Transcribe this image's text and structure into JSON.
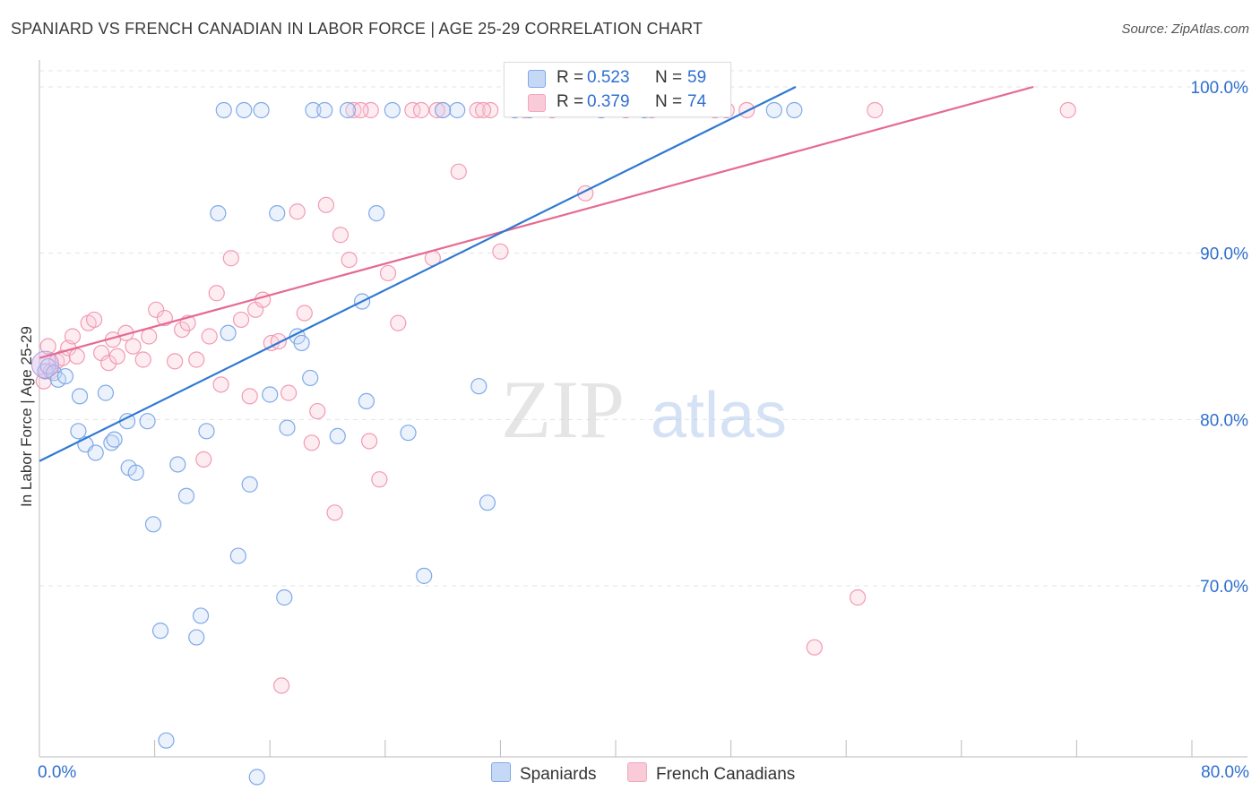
{
  "title": "SPANIARD VS FRENCH CANADIAN IN LABOR FORCE | AGE 25-29 CORRELATION CHART",
  "source": "Source: ZipAtlas.com",
  "watermark": {
    "zip": "ZIP",
    "atlas": "atlas"
  },
  "legend_box": {
    "rows": [
      {
        "r_label": "R =",
        "r_value": "0.523",
        "n_label": "N =",
        "n_value": "59"
      },
      {
        "r_label": "R =",
        "r_value": "0.379",
        "n_label": "N =",
        "n_value": "74"
      }
    ]
  },
  "bottom_legend": [
    "Spaniards",
    "French Canadians"
  ],
  "chart_data": {
    "type": "scatter",
    "title": "SPANIARD VS FRENCH CANADIAN IN LABOR FORCE | AGE 25-29 CORRELATION CHART",
    "xlabel": "",
    "ylabel": "In Labor Force | Age 25-29",
    "xlim": [
      0,
      80
    ],
    "ylim": [
      60,
      100
    ],
    "x_tick_labels": [
      "0.0%",
      "80.0%"
    ],
    "y_ticks": [
      70,
      80,
      90,
      100
    ],
    "y_tick_labels": [
      "70.0%",
      "80.0%",
      "90.0%",
      "100.0%"
    ],
    "grid": true,
    "legend_position": "top-center",
    "colors": {
      "Spaniards": "#7fa9e8",
      "French Canadians": "#f4a7bd",
      "Spaniards_line": "#2e78d3",
      "French Canadians_line": "#e56a92",
      "axis_text": "#2f6fcf"
    },
    "series": [
      {
        "name": "Spaniards",
        "R": 0.523,
        "N": 59,
        "trend": {
          "x": [
            0,
            52.5
          ],
          "y": [
            77.5,
            100
          ]
        },
        "points": [
          [
            0.4,
            82.9
          ],
          [
            0.6,
            83.2
          ],
          [
            1.0,
            82.8
          ],
          [
            1.3,
            82.4
          ],
          [
            1.8,
            82.6
          ],
          [
            2.8,
            81.4
          ],
          [
            2.7,
            79.3
          ],
          [
            3.2,
            78.5
          ],
          [
            3.9,
            78.0
          ],
          [
            4.6,
            81.6
          ],
          [
            5.0,
            78.6
          ],
          [
            5.2,
            78.8
          ],
          [
            6.1,
            79.9
          ],
          [
            6.2,
            77.1
          ],
          [
            6.7,
            76.8
          ],
          [
            7.5,
            79.9
          ],
          [
            7.9,
            73.7
          ],
          [
            8.4,
            67.3
          ],
          [
            8.8,
            60.7
          ],
          [
            9.6,
            77.3
          ],
          [
            10.2,
            75.4
          ],
          [
            10.9,
            66.9
          ],
          [
            11.2,
            68.2
          ],
          [
            11.6,
            79.3
          ],
          [
            12.4,
            92.4
          ],
          [
            12.8,
            98.6
          ],
          [
            13.1,
            85.2
          ],
          [
            14.2,
            98.6
          ],
          [
            13.8,
            71.8
          ],
          [
            14.6,
            76.1
          ],
          [
            15.1,
            58.5
          ],
          [
            15.4,
            98.6
          ],
          [
            16.0,
            81.5
          ],
          [
            16.5,
            92.4
          ],
          [
            17.0,
            69.3
          ],
          [
            17.2,
            79.5
          ],
          [
            17.9,
            85.0
          ],
          [
            18.2,
            84.6
          ],
          [
            18.8,
            82.5
          ],
          [
            19.0,
            98.6
          ],
          [
            19.8,
            98.6
          ],
          [
            20.7,
            79.0
          ],
          [
            21.4,
            98.6
          ],
          [
            22.4,
            87.1
          ],
          [
            22.7,
            81.1
          ],
          [
            23.4,
            92.4
          ],
          [
            24.5,
            98.6
          ],
          [
            25.6,
            79.2
          ],
          [
            26.7,
            70.6
          ],
          [
            29.0,
            98.6
          ],
          [
            30.5,
            82.0
          ],
          [
            31.1,
            75.0
          ],
          [
            34.0,
            98.6
          ],
          [
            39.0,
            98.6
          ],
          [
            42.0,
            98.6
          ],
          [
            51.0,
            98.6
          ],
          [
            52.4,
            98.6
          ],
          [
            28.0,
            98.6
          ],
          [
            33.0,
            98.6
          ]
        ]
      },
      {
        "name": "French Canadians",
        "R": 0.379,
        "N": 74,
        "trend": {
          "x": [
            0,
            69
          ],
          "y": [
            83.7,
            100
          ]
        },
        "points": [
          [
            0.3,
            82.3
          ],
          [
            0.8,
            82.9
          ],
          [
            1.2,
            83.5
          ],
          [
            1.6,
            83.7
          ],
          [
            2.0,
            84.3
          ],
          [
            2.6,
            83.8
          ],
          [
            3.4,
            85.8
          ],
          [
            3.8,
            86.0
          ],
          [
            4.3,
            84.0
          ],
          [
            4.8,
            83.4
          ],
          [
            5.4,
            83.8
          ],
          [
            6.0,
            85.2
          ],
          [
            6.5,
            84.4
          ],
          [
            7.2,
            83.6
          ],
          [
            7.6,
            85.0
          ],
          [
            8.1,
            86.6
          ],
          [
            8.7,
            86.1
          ],
          [
            9.4,
            83.5
          ],
          [
            9.9,
            85.4
          ],
          [
            10.3,
            85.8
          ],
          [
            10.9,
            83.6
          ],
          [
            11.4,
            77.6
          ],
          [
            11.8,
            85.0
          ],
          [
            12.3,
            87.6
          ],
          [
            12.6,
            82.1
          ],
          [
            13.3,
            89.7
          ],
          [
            14.0,
            86.0
          ],
          [
            14.6,
            81.4
          ],
          [
            15.0,
            86.6
          ],
          [
            15.5,
            87.2
          ],
          [
            16.1,
            84.6
          ],
          [
            16.6,
            84.7
          ],
          [
            16.8,
            64.0
          ],
          [
            17.3,
            81.6
          ],
          [
            17.9,
            92.5
          ],
          [
            18.4,
            86.4
          ],
          [
            18.9,
            78.6
          ],
          [
            19.3,
            80.5
          ],
          [
            19.9,
            92.9
          ],
          [
            20.5,
            74.4
          ],
          [
            20.9,
            91.1
          ],
          [
            21.5,
            89.6
          ],
          [
            22.9,
            78.7
          ],
          [
            23.6,
            76.4
          ],
          [
            24.2,
            88.8
          ],
          [
            24.9,
            85.8
          ],
          [
            27.3,
            89.7
          ],
          [
            28.0,
            98.6
          ],
          [
            29.1,
            94.9
          ],
          [
            30.4,
            98.6
          ],
          [
            31.3,
            98.6
          ],
          [
            32.0,
            90.1
          ],
          [
            37.9,
            93.6
          ],
          [
            47.7,
            98.6
          ],
          [
            56.8,
            69.3
          ],
          [
            58.0,
            98.6
          ],
          [
            71.4,
            98.6
          ],
          [
            53.8,
            66.3
          ],
          [
            23.0,
            98.6
          ],
          [
            25.9,
            98.6
          ],
          [
            21.8,
            98.6
          ],
          [
            22.3,
            98.6
          ],
          [
            26.5,
            98.6
          ],
          [
            27.6,
            98.6
          ],
          [
            30.8,
            98.6
          ],
          [
            33.7,
            98.6
          ],
          [
            35.6,
            98.6
          ],
          [
            40.7,
            98.6
          ],
          [
            42.5,
            98.6
          ],
          [
            46.9,
            98.6
          ],
          [
            49.1,
            98.6
          ],
          [
            0.6,
            84.4
          ],
          [
            2.3,
            85.0
          ],
          [
            5.1,
            84.8
          ]
        ]
      }
    ]
  }
}
